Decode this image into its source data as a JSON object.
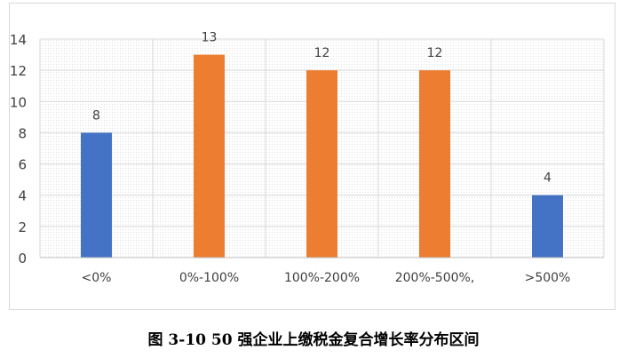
{
  "caption": "图 3-10 50 强企业上缴税金复合增长率分布区间",
  "chart_data": {
    "type": "bar",
    "categories": [
      "<0%",
      "0%-100%",
      "100%-200%",
      "200%-500%,",
      ">500%"
    ],
    "values": [
      8,
      13,
      12,
      12,
      4
    ],
    "data_labels": [
      "8",
      "13",
      "12",
      "12",
      "4"
    ],
    "bar_colors": [
      "#4472C4",
      "#ED7D31",
      "#ED7D31",
      "#ED7D31",
      "#4472C4"
    ],
    "ylim": [
      0,
      14
    ],
    "yticks": [
      0,
      2,
      4,
      6,
      8,
      10,
      12,
      14
    ],
    "grid": true,
    "title": "",
    "xlabel": "",
    "ylabel": ""
  }
}
